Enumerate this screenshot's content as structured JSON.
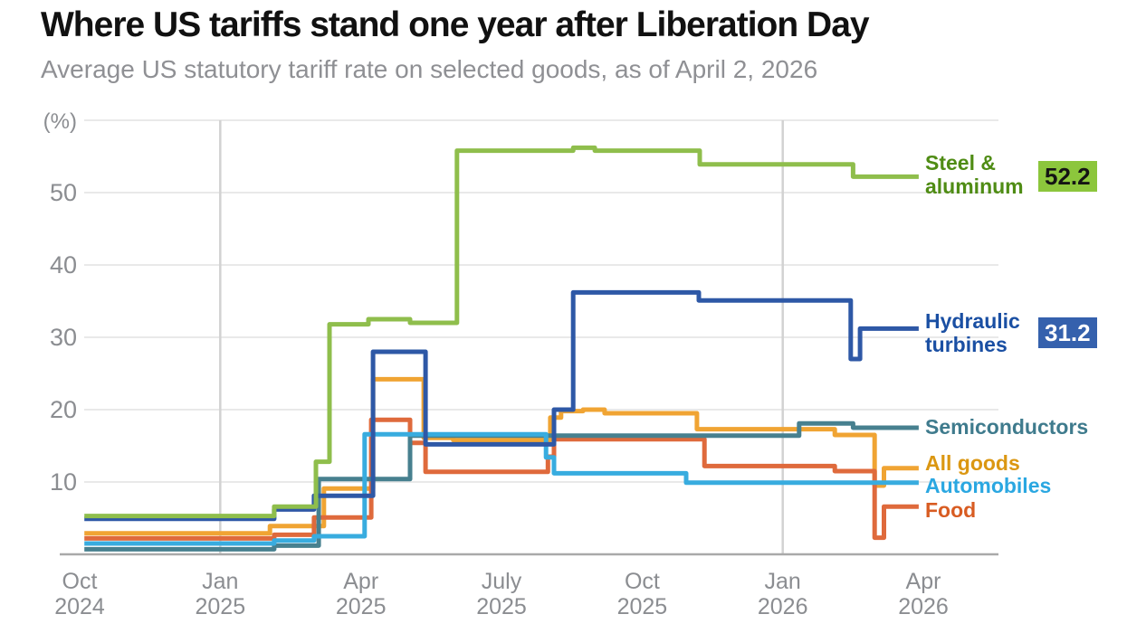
{
  "header": {
    "title": "Where US tariffs stand one year after Liberation Day",
    "subtitle": "Average US statutory tariff rate on selected goods, as of April 2, 2026"
  },
  "y_axis": {
    "unit_label": "(%)",
    "tick_values": [
      50,
      40,
      30,
      20,
      10
    ],
    "gridline_values": [
      60,
      50,
      40,
      30,
      20,
      10
    ],
    "range": [
      0,
      60
    ]
  },
  "x_axis": {
    "ticks": [
      {
        "line1": "Oct",
        "line2": "2024"
      },
      {
        "line1": "Jan",
        "line2": "2025"
      },
      {
        "line1": "Apr",
        "line2": "2025"
      },
      {
        "line1": "July",
        "line2": "2025"
      },
      {
        "line1": "Oct",
        "line2": "2025"
      },
      {
        "line1": "Jan",
        "line2": "2026"
      },
      {
        "line1": "Apr",
        "line2": "2026"
      }
    ],
    "months_per_tick": 3,
    "year_gridlines_at_month": [
      3,
      15
    ]
  },
  "chart_data": {
    "type": "line",
    "subtype": "step",
    "title": "Where US tariffs stand one year after Liberation Day",
    "ylabel": "(%)",
    "ylim": [
      0,
      60
    ],
    "grid": "horizontal, plus vertical lines at year boundaries",
    "legend_position": "right",
    "x_unit": "months after October 2024 (fractional)",
    "points_format": "[months_after_Oct_2024, tariff_rate_percent]",
    "data_end_month": 17.9,
    "draw_order_indices": [
      3,
      5,
      2,
      4,
      1,
      0
    ],
    "series": [
      {
        "name": "Steel & aluminum",
        "legend_label": "Steel & aluminum",
        "color": "#8fbe4c",
        "legend_text_color": "#4f8c14",
        "end_value": 52.2,
        "end_badge": {
          "text": "52.2",
          "bg": "#8cc63c",
          "text_color": "#141414"
        },
        "points": [
          [
            0.1,
            5.3
          ],
          [
            4.15,
            6.6
          ],
          [
            5.04,
            12.8
          ],
          [
            5.33,
            31.8
          ],
          [
            6.16,
            32.5
          ],
          [
            7.05,
            32.0
          ],
          [
            8.05,
            55.8
          ],
          [
            10.53,
            56.2
          ],
          [
            10.99,
            55.8
          ],
          [
            13.23,
            53.9
          ],
          [
            16.5,
            52.2
          ]
        ]
      },
      {
        "name": "Hydraulic turbines",
        "legend_label": "Hydraulic turbines",
        "color": "#2e58a6",
        "legend_text_color": "#1a4fa3",
        "end_value": 31.2,
        "end_badge": {
          "text": "31.2",
          "bg": "#3561ad",
          "text_color": "#ffffff"
        },
        "points": [
          [
            0.1,
            4.9
          ],
          [
            4.15,
            6.2
          ],
          [
            5.0,
            8.1
          ],
          [
            6.26,
            28.0
          ],
          [
            7.38,
            15.2
          ],
          [
            10.12,
            20.0
          ],
          [
            10.53,
            36.2
          ],
          [
            13.21,
            35.1
          ],
          [
            16.45,
            27.0
          ],
          [
            16.65,
            31.2
          ]
        ]
      },
      {
        "name": "Semiconductors",
        "legend_label": "Semiconductors",
        "color": "#47808f",
        "legend_text_color": "#3f7b8d",
        "end_value": 17.5,
        "points": [
          [
            0.1,
            0.7
          ],
          [
            4.15,
            1.2
          ],
          [
            5.1,
            10.4
          ],
          [
            7.05,
            16.4
          ],
          [
            15.35,
            18.1
          ],
          [
            16.5,
            17.5
          ]
        ]
      },
      {
        "name": "All goods",
        "legend_label": "All goods",
        "color": "#f0a433",
        "legend_text_color": "#db9712",
        "end_value": 11.9,
        "points": [
          [
            0.1,
            2.9
          ],
          [
            4.06,
            3.9
          ],
          [
            5.21,
            9.1
          ],
          [
            6.26,
            24.2
          ],
          [
            7.34,
            16.1
          ],
          [
            7.97,
            15.8
          ],
          [
            10.04,
            18.9
          ],
          [
            10.27,
            19.8
          ],
          [
            10.74,
            20.0
          ],
          [
            11.2,
            19.5
          ],
          [
            13.17,
            17.3
          ],
          [
            16.11,
            16.5
          ],
          [
            16.96,
            9.5
          ],
          [
            17.16,
            11.9
          ]
        ]
      },
      {
        "name": "Automobiles",
        "legend_label": "Automobiles",
        "color": "#38acdf",
        "legend_text_color": "#2aa7e1",
        "end_value": 9.9,
        "points": [
          [
            0.1,
            1.5
          ],
          [
            4.15,
            1.9
          ],
          [
            5.0,
            2.5
          ],
          [
            6.08,
            16.6
          ],
          [
            9.95,
            13.4
          ],
          [
            10.12,
            11.2
          ],
          [
            12.94,
            9.9
          ]
        ]
      },
      {
        "name": "Food",
        "legend_label": "Food",
        "color": "#df6a3c",
        "legend_text_color": "#d85c22",
        "end_value": 6.6,
        "points": [
          [
            0.1,
            2.2
          ],
          [
            4.15,
            2.7
          ],
          [
            5.0,
            5.1
          ],
          [
            6.22,
            18.6
          ],
          [
            7.05,
            15.4
          ],
          [
            7.38,
            11.4
          ],
          [
            9.99,
            13.5
          ],
          [
            10.12,
            15.9
          ],
          [
            13.33,
            12.2
          ],
          [
            16.11,
            11.5
          ],
          [
            16.96,
            2.3
          ],
          [
            17.16,
            6.6
          ]
        ]
      }
    ]
  }
}
